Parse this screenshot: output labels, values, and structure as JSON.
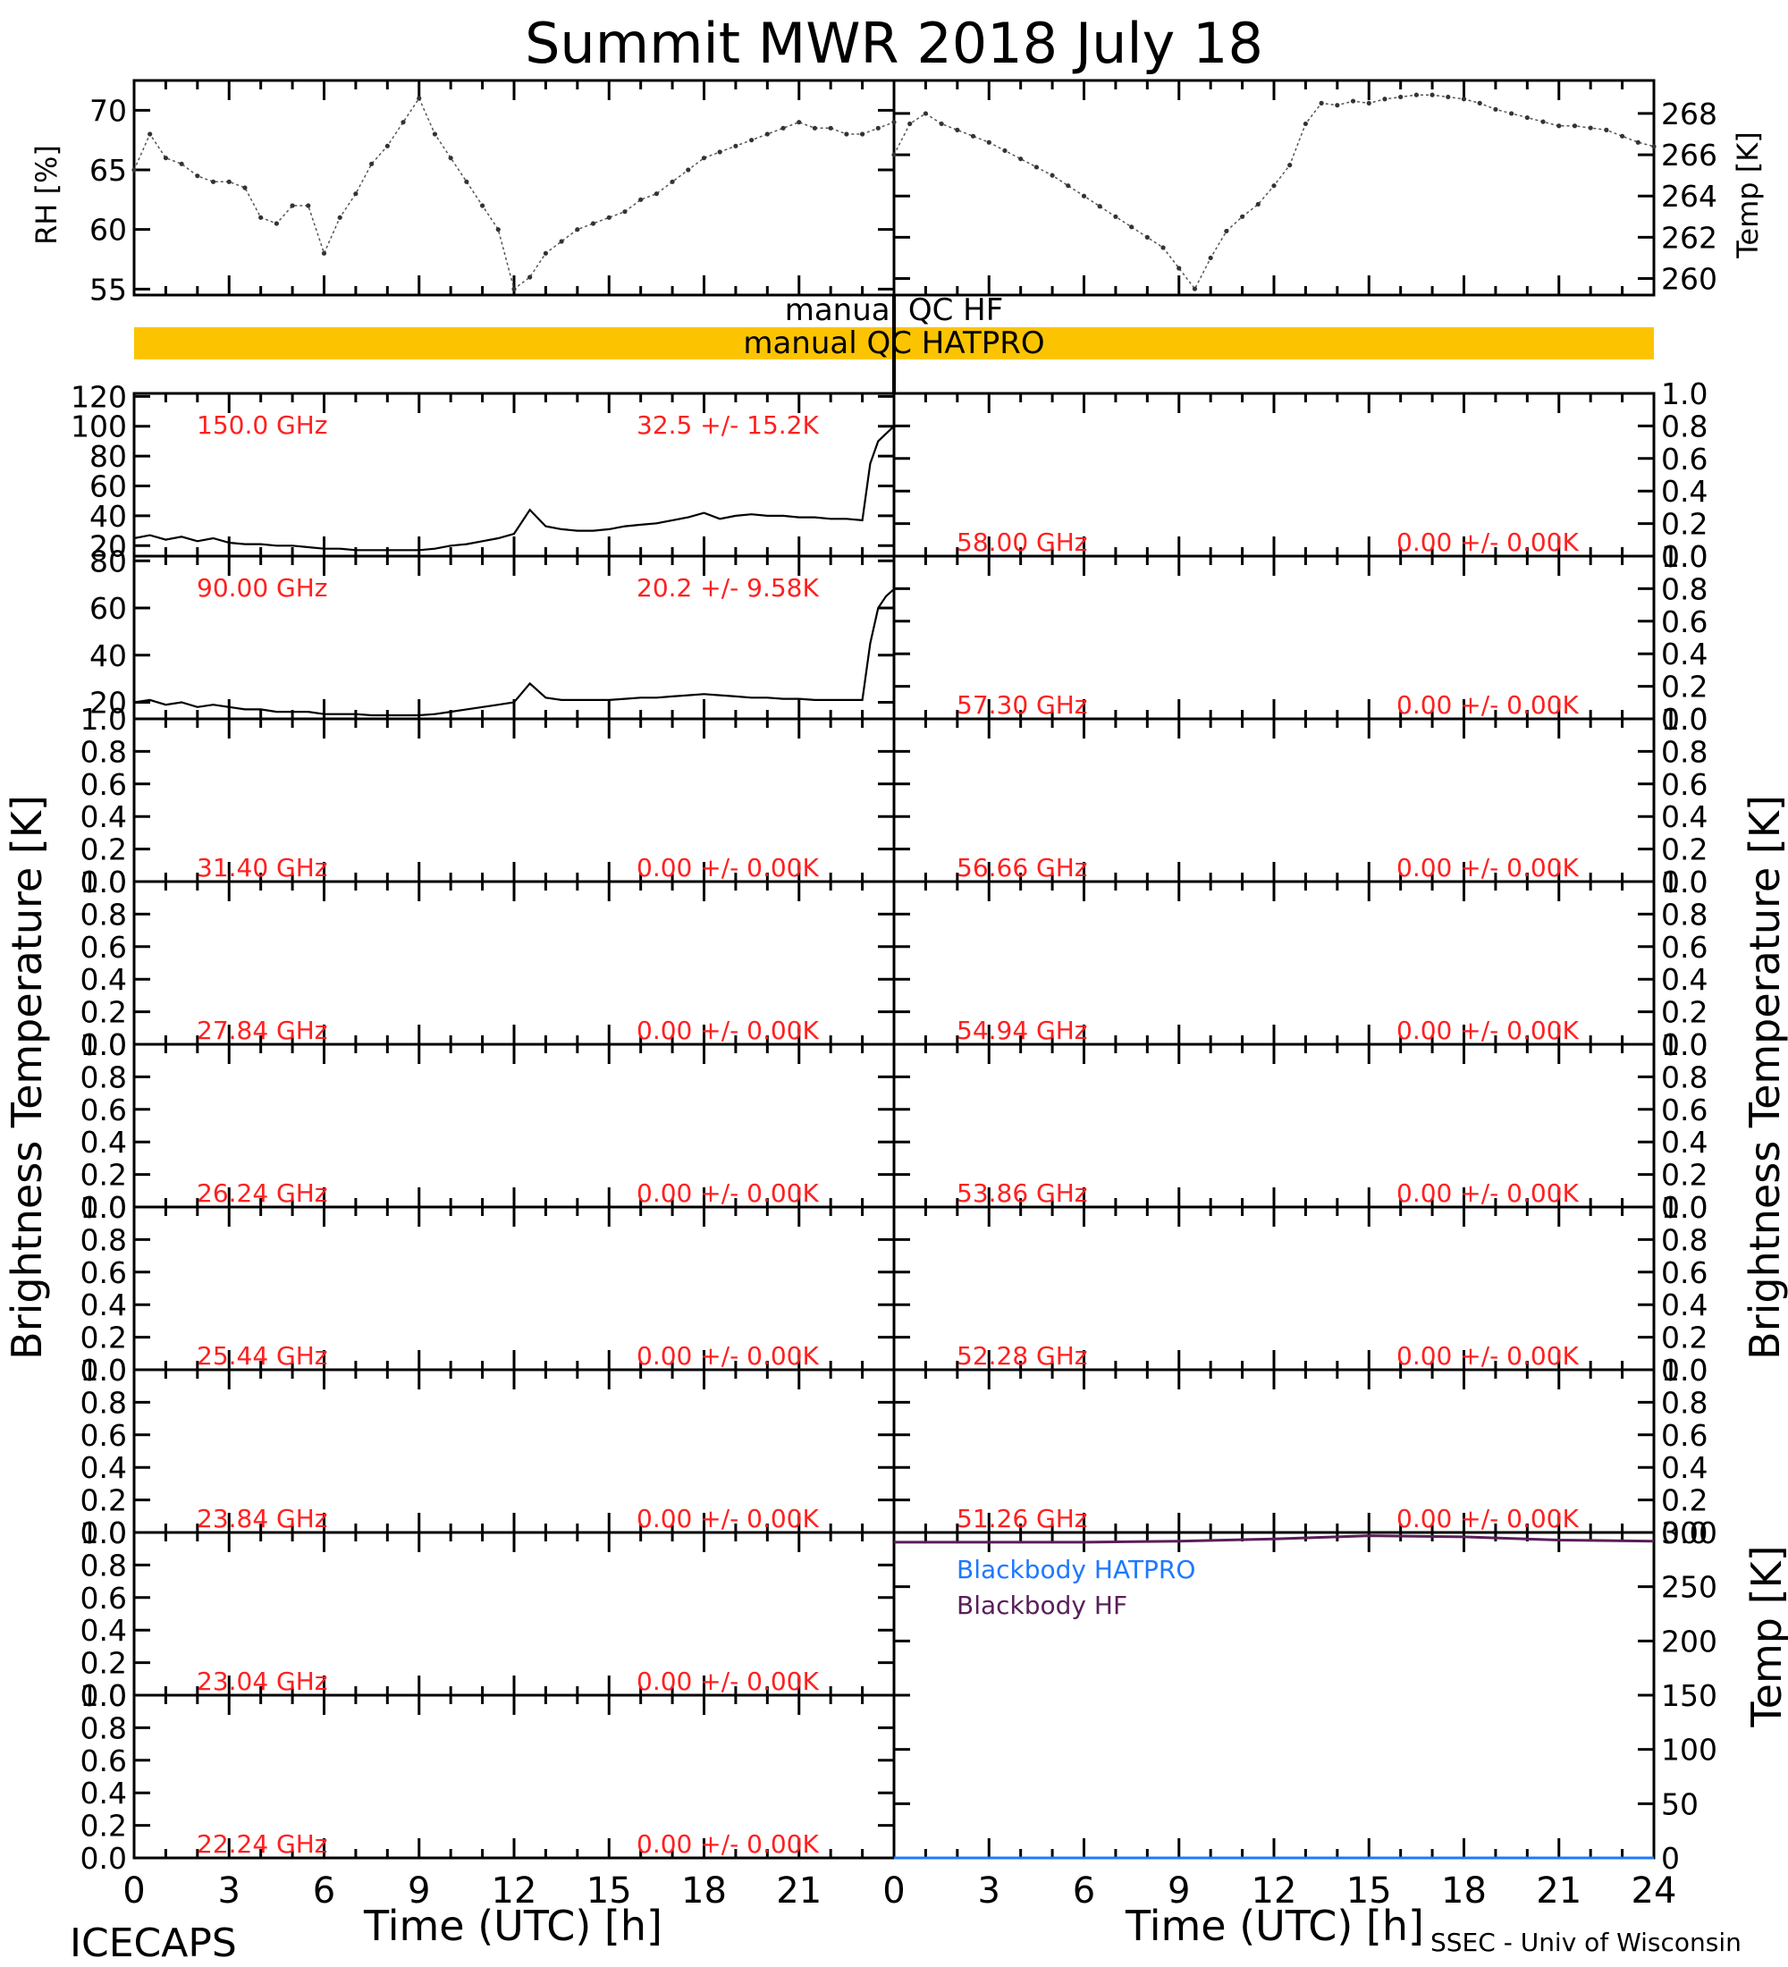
{
  "page": {
    "title": "Summit MWR 2018 July 18",
    "footer_left": "ICECAPS",
    "footer_right": "SSEC - Univ of Wisconsin"
  },
  "colors": {
    "axis": "#000000",
    "channel_text": "#ff2020",
    "qc_fill": "#fcc400",
    "blackbody_hatpro": "#1e78ff",
    "blackbody_hf": "#5a1e5a"
  },
  "qc": {
    "hf_label": "manual QC HF",
    "hatpro_label": "manual QC HATPRO"
  },
  "chart_data": [
    {
      "id": "rh",
      "type": "scatter",
      "ylabel": "RH [%]",
      "ylim": [
        54.5,
        72.5
      ],
      "yticks": [
        55,
        60,
        65,
        70
      ],
      "xlim": [
        0,
        24
      ],
      "x": [
        0,
        0.5,
        1,
        1.5,
        2,
        2.5,
        3,
        3.5,
        4,
        4.5,
        5,
        5.5,
        6,
        6.5,
        7,
        7.5,
        8,
        8.5,
        9,
        9.5,
        10,
        10.5,
        11,
        11.5,
        12,
        12.5,
        13,
        13.5,
        14,
        14.5,
        15,
        15.5,
        16,
        16.5,
        17,
        17.5,
        18,
        18.5,
        19,
        19.5,
        20,
        20.5,
        21,
        21.5,
        22,
        22.5,
        23,
        23.5,
        24
      ],
      "values": [
        65,
        68,
        66,
        65.5,
        64.5,
        64,
        64,
        63.5,
        61,
        60.5,
        62,
        62,
        58,
        61,
        63,
        65.5,
        67,
        69,
        71,
        68,
        66,
        64,
        62,
        60,
        55,
        56,
        58,
        59,
        60,
        60.5,
        61,
        61.5,
        62.5,
        63,
        64,
        65,
        66,
        66.5,
        67,
        67.5,
        68,
        68.5,
        69,
        68.5,
        68.5,
        68,
        68,
        68.5,
        69
      ]
    },
    {
      "id": "temp_air",
      "type": "scatter",
      "ylabel": "Temp [K]",
      "ylim": [
        259.2,
        269.6
      ],
      "yticks": [
        260,
        262,
        264,
        266,
        268
      ],
      "xlim": [
        0,
        24
      ],
      "x": [
        0,
        0.5,
        1,
        1.5,
        2,
        2.5,
        3,
        3.5,
        4,
        4.5,
        5,
        5.5,
        6,
        6.5,
        7,
        7.5,
        8,
        8.5,
        9,
        9.5,
        10,
        10.5,
        11,
        11.5,
        12,
        12.5,
        13,
        13.5,
        14,
        14.5,
        15,
        15.5,
        16,
        16.5,
        17,
        17.5,
        18,
        18.5,
        19,
        19.5,
        20,
        20.5,
        21,
        21.5,
        22,
        22.5,
        23,
        23.5,
        24
      ],
      "values": [
        266,
        267.5,
        268,
        267.5,
        267.2,
        266.9,
        266.6,
        266.2,
        265.8,
        265.4,
        265,
        264.5,
        264,
        263.5,
        263,
        262.5,
        262,
        261.5,
        260.5,
        259.5,
        261,
        262.3,
        263,
        263.6,
        264.5,
        265.5,
        267.5,
        268.5,
        268.4,
        268.6,
        268.5,
        268.7,
        268.8,
        268.9,
        268.9,
        268.8,
        268.7,
        268.5,
        268.2,
        268,
        267.8,
        267.6,
        267.4,
        267.4,
        267.3,
        267.2,
        266.9,
        266.6,
        266.4
      ]
    },
    {
      "id": "tb_150",
      "type": "line",
      "channel": "150.0 GHz",
      "stat": "32.5 +/-  15.2K",
      "ylim": [
        13,
        122
      ],
      "yticks": [
        20,
        40,
        60,
        80,
        100,
        120
      ],
      "xlim": [
        0,
        24
      ],
      "x": [
        0,
        0.5,
        1,
        1.5,
        2,
        2.5,
        3,
        3.5,
        4,
        4.5,
        5,
        5.5,
        6,
        6.5,
        7,
        7.5,
        8,
        8.5,
        9,
        9.5,
        10,
        10.5,
        11,
        11.5,
        12,
        12.5,
        13,
        13.5,
        14,
        14.5,
        15,
        15.5,
        16,
        16.5,
        17,
        17.5,
        18,
        18.5,
        19,
        19.5,
        20,
        20.5,
        21,
        21.5,
        22,
        22.5,
        23,
        23.25,
        23.5,
        23.75,
        24
      ],
      "values": [
        25,
        27,
        24,
        26,
        23,
        25,
        22,
        21,
        21,
        20,
        20,
        19,
        18,
        18,
        17,
        17,
        17,
        17,
        17,
        18,
        20,
        21,
        23,
        25,
        28,
        44,
        33,
        31,
        30,
        30,
        31,
        33,
        34,
        35,
        37,
        39,
        42,
        38,
        40,
        41,
        40,
        40,
        39,
        39,
        38,
        38,
        37,
        75,
        90,
        95,
        100
      ]
    },
    {
      "id": "tb_90",
      "type": "line",
      "channel": "90.00 GHz",
      "stat": "20.2 +/-  9.58K",
      "ylim": [
        13,
        82
      ],
      "yticks": [
        20,
        40,
        60,
        80
      ],
      "xlim": [
        0,
        24
      ],
      "x": [
        0,
        0.5,
        1,
        1.5,
        2,
        2.5,
        3,
        3.5,
        4,
        4.5,
        5,
        5.5,
        6,
        6.5,
        7,
        7.5,
        8,
        8.5,
        9,
        9.5,
        10,
        10.5,
        11,
        11.5,
        12,
        12.5,
        13,
        13.5,
        14,
        14.5,
        15,
        15.5,
        16,
        16.5,
        17,
        17.5,
        18,
        18.5,
        19,
        19.5,
        20,
        20.5,
        21,
        21.5,
        22,
        22.5,
        23,
        23.25,
        23.5,
        23.75,
        24
      ],
      "values": [
        20,
        21,
        19,
        20,
        18,
        19,
        18,
        17,
        17,
        16,
        16,
        16,
        15,
        15,
        15,
        14.5,
        14.5,
        14.5,
        14.5,
        15,
        16,
        17,
        18,
        19,
        20,
        28,
        22,
        21,
        21,
        21,
        21,
        21.5,
        22,
        22,
        22.5,
        23,
        23.5,
        23,
        22.5,
        22,
        22,
        21.5,
        21.5,
        21,
        21,
        21,
        21,
        45,
        60,
        65,
        68
      ]
    }
  ],
  "left_channels": [
    {
      "label": "31.40 GHz",
      "stat": "0.00 +/-  0.00K"
    },
    {
      "label": "27.84 GHz",
      "stat": "0.00 +/-  0.00K"
    },
    {
      "label": "26.24 GHz",
      "stat": "0.00 +/-  0.00K"
    },
    {
      "label": "25.44 GHz",
      "stat": "0.00 +/-  0.00K"
    },
    {
      "label": "23.84 GHz",
      "stat": "0.00 +/-  0.00K"
    },
    {
      "label": "23.04 GHz",
      "stat": "0.00 +/-  0.00K"
    },
    {
      "label": "22.24 GHz",
      "stat": "0.00 +/-  0.00K"
    }
  ],
  "right_channels": [
    {
      "label": "58.00 GHz",
      "stat": "0.00 +/-  0.00K"
    },
    {
      "label": "57.30 GHz",
      "stat": "0.00 +/-  0.00K"
    },
    {
      "label": "56.66 GHz",
      "stat": "0.00 +/-  0.00K"
    },
    {
      "label": "54.94 GHz",
      "stat": "0.00 +/-  0.00K"
    },
    {
      "label": "53.86 GHz",
      "stat": "0.00 +/-  0.00K"
    },
    {
      "label": "52.28 GHz",
      "stat": "0.00 +/-  0.00K"
    },
    {
      "label": "51.26 GHz",
      "stat": "0.00 +/-  0.00K"
    }
  ],
  "empty_axis": {
    "ylim": [
      0,
      1
    ],
    "yticks": [
      "0.0",
      "0.2",
      "0.4",
      "0.6",
      "0.8",
      "1.0"
    ]
  },
  "blackbody": {
    "type": "line",
    "ylabel": "Temp [K]",
    "ylim": [
      0,
      300
    ],
    "yticks": [
      0,
      50,
      100,
      150,
      200,
      250,
      300
    ],
    "xlim": [
      0,
      24
    ],
    "series": [
      {
        "name": "Blackbody HATPRO",
        "x": [
          0,
          24
        ],
        "values": [
          0,
          0
        ]
      },
      {
        "name": "Blackbody HF",
        "x": [
          0,
          3,
          6,
          9,
          12,
          15,
          18,
          21,
          24
        ],
        "values": [
          291,
          291,
          291,
          292,
          294,
          297,
          296,
          293,
          292
        ]
      }
    ]
  },
  "brightness_label": "Brightness Temperature [K]",
  "x_axis": {
    "label": "Time (UTC) [h]",
    "left_ticks": [
      "0",
      "3",
      "6",
      "9",
      "12",
      "15",
      "18",
      "21"
    ],
    "right_ticks": [
      "0",
      "3",
      "6",
      "9",
      "12",
      "15",
      "18",
      "21",
      "24"
    ]
  }
}
